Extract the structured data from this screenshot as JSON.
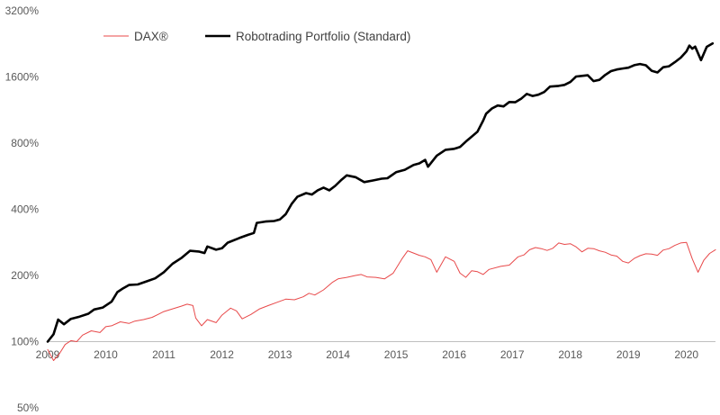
{
  "chart_data": {
    "type": "line",
    "yscale": "log2",
    "ylim": [
      50,
      3200
    ],
    "xlim": [
      2009,
      2020.5
    ],
    "y_ticks": [
      50,
      100,
      200,
      400,
      800,
      1600,
      3200
    ],
    "y_tick_labels": [
      "50%",
      "100%",
      "200%",
      "400%",
      "800%",
      "1600%",
      "3200%"
    ],
    "x_ticks": [
      2009,
      2010,
      2011,
      2012,
      2013,
      2014,
      2015,
      2016,
      2017,
      2018,
      2019,
      2020
    ],
    "x_tick_labels": [
      "2009",
      "2010",
      "2011",
      "2012",
      "2013",
      "2014",
      "2015",
      "2016",
      "2017",
      "2018",
      "2019",
      "2020"
    ],
    "grid": false,
    "legend_position": "top-left",
    "series": [
      {
        "name": "DAX®",
        "color": "#e8494a",
        "points": [
          [
            2009.0,
            92
          ],
          [
            2009.1,
            82
          ],
          [
            2009.2,
            88
          ],
          [
            2009.3,
            97
          ],
          [
            2009.4,
            101
          ],
          [
            2009.5,
            100
          ],
          [
            2009.6,
            107
          ],
          [
            2009.75,
            112
          ],
          [
            2009.9,
            110
          ],
          [
            2010.0,
            117
          ],
          [
            2010.1,
            118
          ],
          [
            2010.25,
            123
          ],
          [
            2010.4,
            121
          ],
          [
            2010.5,
            124
          ],
          [
            2010.65,
            126
          ],
          [
            2010.8,
            129
          ],
          [
            2010.9,
            133
          ],
          [
            2011.0,
            137
          ],
          [
            2011.15,
            141
          ],
          [
            2011.3,
            145
          ],
          [
            2011.4,
            148
          ],
          [
            2011.5,
            146
          ],
          [
            2011.55,
            128
          ],
          [
            2011.65,
            118
          ],
          [
            2011.75,
            126
          ],
          [
            2011.9,
            122
          ],
          [
            2012.0,
            132
          ],
          [
            2012.15,
            142
          ],
          [
            2012.25,
            138
          ],
          [
            2012.35,
            127
          ],
          [
            2012.5,
            133
          ],
          [
            2012.65,
            141
          ],
          [
            2012.8,
            146
          ],
          [
            2012.95,
            151
          ],
          [
            2013.1,
            156
          ],
          [
            2013.25,
            155
          ],
          [
            2013.4,
            160
          ],
          [
            2013.5,
            166
          ],
          [
            2013.6,
            163
          ],
          [
            2013.75,
            172
          ],
          [
            2013.9,
            186
          ],
          [
            2014.0,
            193
          ],
          [
            2014.15,
            196
          ],
          [
            2014.3,
            200
          ],
          [
            2014.4,
            202
          ],
          [
            2014.5,
            197
          ],
          [
            2014.65,
            196
          ],
          [
            2014.8,
            193
          ],
          [
            2014.95,
            205
          ],
          [
            2015.1,
            238
          ],
          [
            2015.2,
            259
          ],
          [
            2015.3,
            253
          ],
          [
            2015.4,
            247
          ],
          [
            2015.5,
            243
          ],
          [
            2015.6,
            236
          ],
          [
            2015.7,
            207
          ],
          [
            2015.85,
            243
          ],
          [
            2016.0,
            232
          ],
          [
            2016.1,
            205
          ],
          [
            2016.2,
            196
          ],
          [
            2016.3,
            210
          ],
          [
            2016.4,
            208
          ],
          [
            2016.5,
            202
          ],
          [
            2016.6,
            213
          ],
          [
            2016.8,
            220
          ],
          [
            2016.95,
            223
          ],
          [
            2017.1,
            243
          ],
          [
            2017.2,
            248
          ],
          [
            2017.3,
            262
          ],
          [
            2017.4,
            268
          ],
          [
            2017.5,
            265
          ],
          [
            2017.6,
            260
          ],
          [
            2017.7,
            266
          ],
          [
            2017.8,
            281
          ],
          [
            2017.9,
            277
          ],
          [
            2018.0,
            279
          ],
          [
            2018.1,
            270
          ],
          [
            2018.2,
            256
          ],
          [
            2018.3,
            266
          ],
          [
            2018.4,
            265
          ],
          [
            2018.5,
            259
          ],
          [
            2018.6,
            255
          ],
          [
            2018.7,
            248
          ],
          [
            2018.8,
            245
          ],
          [
            2018.9,
            232
          ],
          [
            2019.0,
            228
          ],
          [
            2019.1,
            239
          ],
          [
            2019.2,
            246
          ],
          [
            2019.3,
            251
          ],
          [
            2019.4,
            250
          ],
          [
            2019.5,
            247
          ],
          [
            2019.6,
            261
          ],
          [
            2019.7,
            265
          ],
          [
            2019.8,
            274
          ],
          [
            2019.9,
            281
          ],
          [
            2020.0,
            283
          ],
          [
            2020.1,
            238
          ],
          [
            2020.2,
            207
          ],
          [
            2020.3,
            235
          ],
          [
            2020.4,
            252
          ],
          [
            2020.5,
            262
          ]
        ]
      },
      {
        "name": "Robotrading Portfolio (Standard)",
        "color": "#000000",
        "points": [
          [
            2009.0,
            100
          ],
          [
            2009.1,
            108
          ],
          [
            2009.18,
            126
          ],
          [
            2009.28,
            120
          ],
          [
            2009.4,
            127
          ],
          [
            2009.55,
            130
          ],
          [
            2009.7,
            134
          ],
          [
            2009.8,
            140
          ],
          [
            2009.95,
            143
          ],
          [
            2010.1,
            152
          ],
          [
            2010.2,
            168
          ],
          [
            2010.3,
            175
          ],
          [
            2010.4,
            181
          ],
          [
            2010.55,
            182
          ],
          [
            2010.7,
            188
          ],
          [
            2010.85,
            194
          ],
          [
            2011.0,
            207
          ],
          [
            2011.15,
            226
          ],
          [
            2011.3,
            240
          ],
          [
            2011.45,
            259
          ],
          [
            2011.6,
            257
          ],
          [
            2011.7,
            253
          ],
          [
            2011.75,
            271
          ],
          [
            2011.9,
            262
          ],
          [
            2012.0,
            266
          ],
          [
            2012.1,
            282
          ],
          [
            2012.3,
            296
          ],
          [
            2012.45,
            306
          ],
          [
            2012.55,
            312
          ],
          [
            2012.6,
            347
          ],
          [
            2012.75,
            352
          ],
          [
            2012.9,
            354
          ],
          [
            2013.0,
            360
          ],
          [
            2013.1,
            380
          ],
          [
            2013.2,
            423
          ],
          [
            2013.3,
            456
          ],
          [
            2013.45,
            474
          ],
          [
            2013.55,
            467
          ],
          [
            2013.65,
            488
          ],
          [
            2013.75,
            502
          ],
          [
            2013.85,
            488
          ],
          [
            2013.95,
            511
          ],
          [
            2014.05,
            542
          ],
          [
            2014.15,
            571
          ],
          [
            2014.3,
            560
          ],
          [
            2014.45,
            532
          ],
          [
            2014.6,
            541
          ],
          [
            2014.75,
            551
          ],
          [
            2014.85,
            554
          ],
          [
            2015.0,
            590
          ],
          [
            2015.15,
            605
          ],
          [
            2015.3,
            637
          ],
          [
            2015.4,
            647
          ],
          [
            2015.5,
            671
          ],
          [
            2015.55,
            625
          ],
          [
            2015.7,
            702
          ],
          [
            2015.85,
            746
          ],
          [
            2016.0,
            754
          ],
          [
            2016.1,
            768
          ],
          [
            2016.2,
            813
          ],
          [
            2016.3,
            855
          ],
          [
            2016.4,
            902
          ],
          [
            2016.5,
            1014
          ],
          [
            2016.55,
            1088
          ],
          [
            2016.65,
            1150
          ],
          [
            2016.75,
            1187
          ],
          [
            2016.85,
            1175
          ],
          [
            2016.95,
            1231
          ],
          [
            2017.05,
            1227
          ],
          [
            2017.15,
            1272
          ],
          [
            2017.25,
            1340
          ],
          [
            2017.35,
            1311
          ],
          [
            2017.45,
            1329
          ],
          [
            2017.55,
            1367
          ],
          [
            2017.65,
            1447
          ],
          [
            2017.8,
            1458
          ],
          [
            2017.9,
            1473
          ],
          [
            2018.0,
            1517
          ],
          [
            2018.1,
            1607
          ],
          [
            2018.2,
            1618
          ],
          [
            2018.3,
            1629
          ],
          [
            2018.4,
            1532
          ],
          [
            2018.5,
            1552
          ],
          [
            2018.6,
            1633
          ],
          [
            2018.7,
            1701
          ],
          [
            2018.8,
            1731
          ],
          [
            2018.9,
            1749
          ],
          [
            2019.0,
            1764
          ],
          [
            2019.1,
            1811
          ],
          [
            2019.2,
            1833
          ],
          [
            2019.3,
            1808
          ],
          [
            2019.4,
            1707
          ],
          [
            2019.5,
            1677
          ],
          [
            2019.6,
            1771
          ],
          [
            2019.7,
            1790
          ],
          [
            2019.8,
            1867
          ],
          [
            2019.9,
            1958
          ],
          [
            2020.0,
            2092
          ],
          [
            2020.05,
            2224
          ],
          [
            2020.1,
            2151
          ],
          [
            2020.15,
            2198
          ],
          [
            2020.25,
            1909
          ],
          [
            2020.35,
            2195
          ],
          [
            2020.45,
            2273
          ]
        ]
      }
    ]
  }
}
